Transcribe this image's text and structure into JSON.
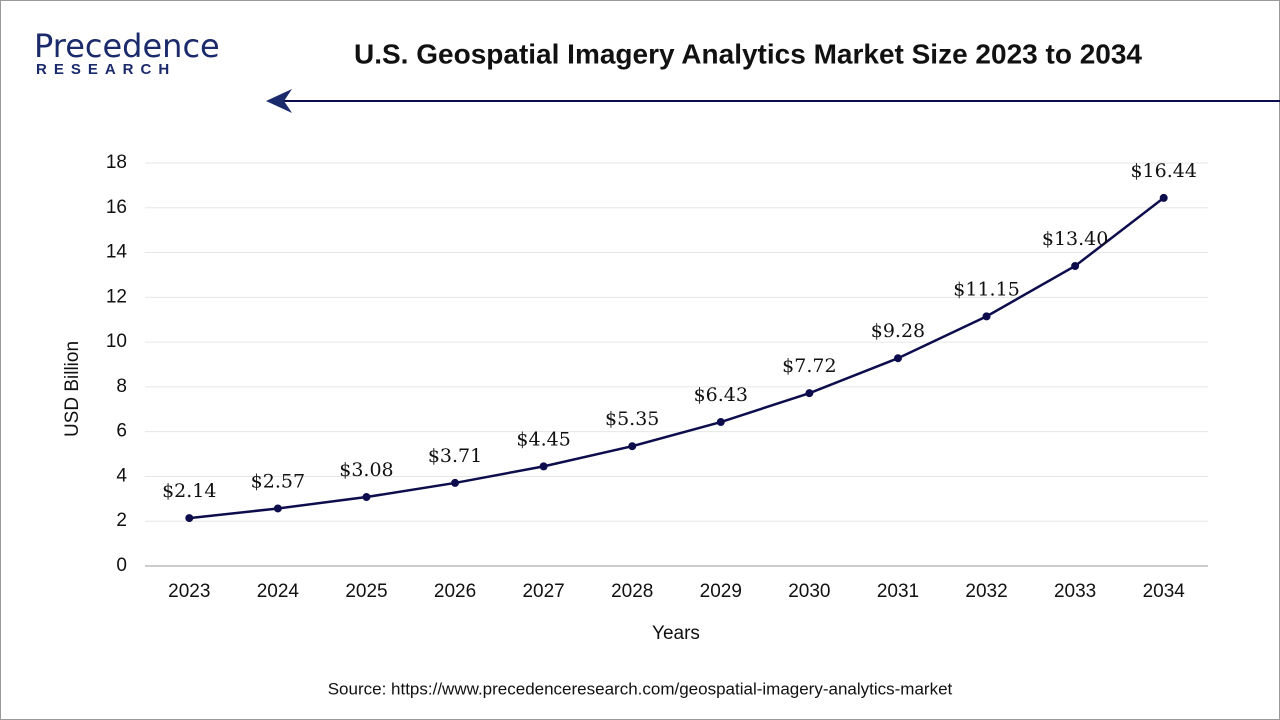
{
  "logo": {
    "name": "Precedence",
    "tagline": "RESEARCH"
  },
  "chart_data": {
    "type": "line",
    "title": "U.S. Geospatial Imagery Analytics Market Size 2023 to 2034",
    "x_label": "Years",
    "y_label": "USD Billion",
    "source": "Source: https://www.precedenceresearch.com/geospatial-imagery-analytics-market",
    "categories": [
      "2023",
      "2024",
      "2025",
      "2026",
      "2027",
      "2028",
      "2029",
      "2030",
      "2031",
      "2032",
      "2033",
      "2034"
    ],
    "values": [
      2.14,
      2.57,
      3.08,
      3.71,
      4.45,
      5.35,
      6.43,
      7.72,
      9.28,
      11.15,
      13.4,
      16.44
    ],
    "value_labels": [
      "$2.14",
      "$2.57",
      "$3.08",
      "$3.71",
      "$4.45",
      "$5.35",
      "$6.43",
      "$7.72",
      "$9.28",
      "$11.15",
      "$13.40",
      "$16.44"
    ],
    "color": "#0d0d4d",
    "ylim": [
      0,
      18
    ],
    "yticks": [
      0,
      2,
      4,
      6,
      8,
      10,
      12,
      14,
      16,
      18
    ],
    "grid": true
  }
}
